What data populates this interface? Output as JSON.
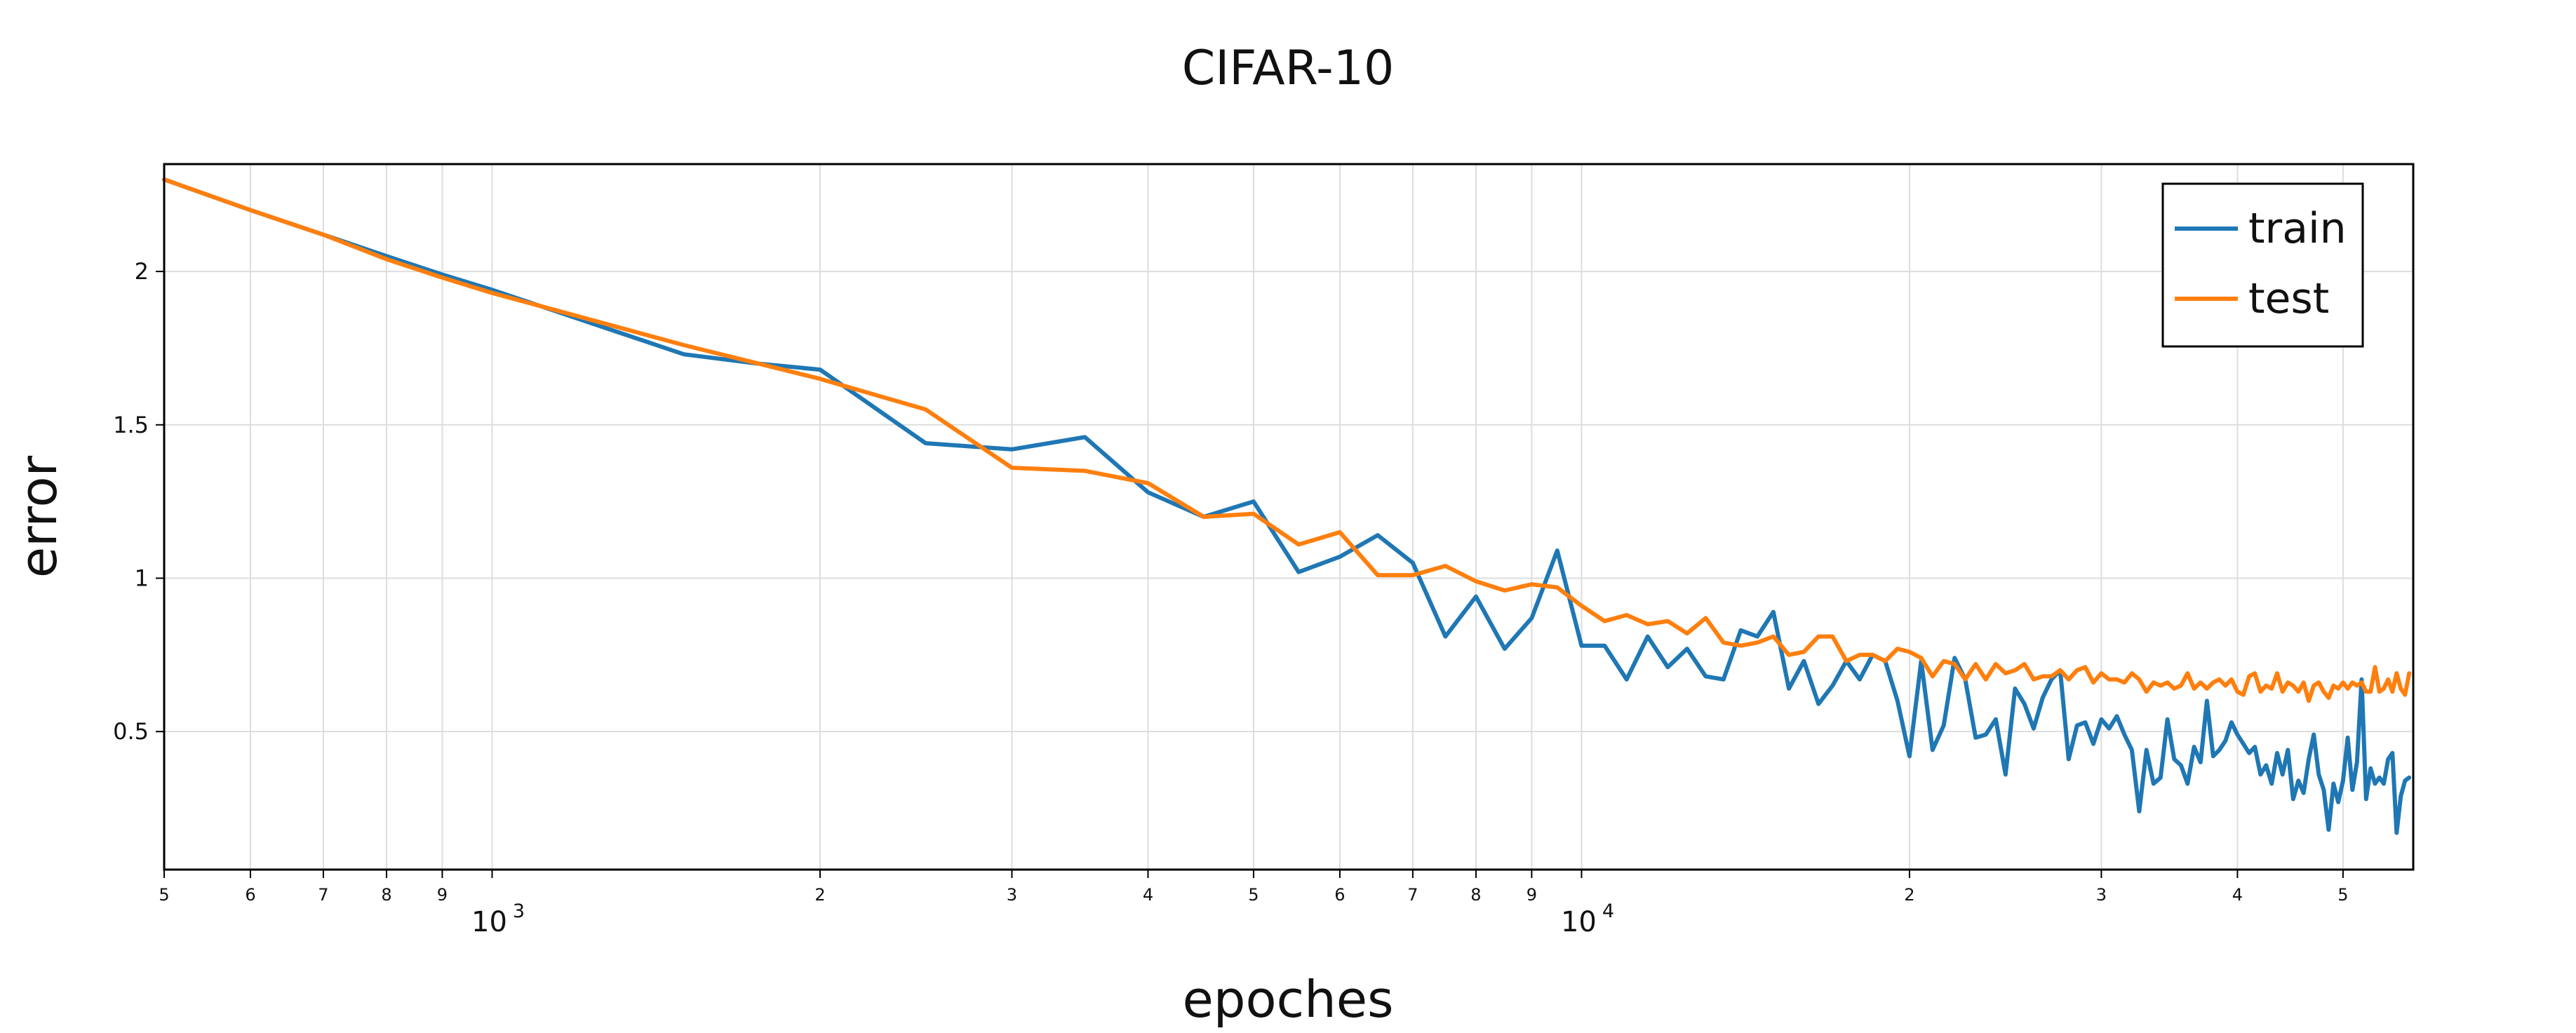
{
  "chart_data": {
    "type": "line",
    "title": "CIFAR-10",
    "xlabel": "epoches",
    "ylabel": "error",
    "xscale": "log",
    "xlim": [
      500,
      58000
    ],
    "ylim": [
      0.05,
      2.35
    ],
    "grid": true,
    "legend_position": "top-right",
    "y_ticks": [
      {
        "value": 0.5,
        "label": "0.5"
      },
      {
        "value": 1,
        "label": "1"
      },
      {
        "value": 1.5,
        "label": "1.5"
      },
      {
        "value": 2,
        "label": "2"
      }
    ],
    "x_minor_ticks": [
      {
        "value": 500,
        "label": "5"
      },
      {
        "value": 600,
        "label": "6"
      },
      {
        "value": 700,
        "label": "7"
      },
      {
        "value": 800,
        "label": "8"
      },
      {
        "value": 900,
        "label": "9"
      },
      {
        "value": 2000,
        "label": "2"
      },
      {
        "value": 3000,
        "label": "3"
      },
      {
        "value": 4000,
        "label": "4"
      },
      {
        "value": 5000,
        "label": "5"
      },
      {
        "value": 6000,
        "label": "6"
      },
      {
        "value": 7000,
        "label": "7"
      },
      {
        "value": 8000,
        "label": "8"
      },
      {
        "value": 9000,
        "label": "9"
      },
      {
        "value": 20000,
        "label": "2"
      },
      {
        "value": 30000,
        "label": "3"
      },
      {
        "value": 40000,
        "label": "4"
      },
      {
        "value": 50000,
        "label": "5"
      }
    ],
    "x_major_ticks": [
      {
        "value": 1000,
        "base": "10",
        "exp": "3"
      },
      {
        "value": 10000,
        "base": "10",
        "exp": "4"
      }
    ],
    "series": [
      {
        "name": "train",
        "color": "#1f77b4",
        "points": [
          [
            500,
            2.3
          ],
          [
            600,
            2.2
          ],
          [
            700,
            2.12
          ],
          [
            800,
            2.05
          ],
          [
            900,
            1.99
          ],
          [
            1000,
            1.94
          ],
          [
            1500,
            1.73
          ],
          [
            1750,
            1.7
          ],
          [
            2000,
            1.68
          ],
          [
            2500,
            1.44
          ],
          [
            3000,
            1.42
          ],
          [
            3500,
            1.46
          ],
          [
            4000,
            1.28
          ],
          [
            4500,
            1.2
          ],
          [
            5000,
            1.25
          ],
          [
            5500,
            1.02
          ],
          [
            6000,
            1.07
          ],
          [
            6500,
            1.14
          ],
          [
            7000,
            1.05
          ],
          [
            7500,
            0.81
          ],
          [
            8000,
            0.94
          ],
          [
            8500,
            0.77
          ],
          [
            9000,
            0.87
          ],
          [
            9500,
            1.09
          ],
          [
            10000,
            0.78
          ],
          [
            10500,
            0.78
          ],
          [
            11000,
            0.67
          ],
          [
            11500,
            0.81
          ],
          [
            12000,
            0.71
          ],
          [
            12500,
            0.77
          ],
          [
            13000,
            0.68
          ],
          [
            13500,
            0.67
          ],
          [
            14000,
            0.83
          ],
          [
            14500,
            0.81
          ],
          [
            15000,
            0.89
          ],
          [
            15500,
            0.64
          ],
          [
            16000,
            0.73
          ],
          [
            16500,
            0.59
          ],
          [
            17000,
            0.65
          ],
          [
            17500,
            0.73
          ],
          [
            18000,
            0.67
          ],
          [
            18500,
            0.75
          ],
          [
            19000,
            0.73
          ],
          [
            19500,
            0.6
          ],
          [
            20000,
            0.42
          ],
          [
            20500,
            0.73
          ],
          [
            21000,
            0.44
          ],
          [
            21500,
            0.52
          ],
          [
            22000,
            0.74
          ],
          [
            22500,
            0.67
          ],
          [
            23000,
            0.48
          ],
          [
            23500,
            0.49
          ],
          [
            24000,
            0.54
          ],
          [
            24500,
            0.36
          ],
          [
            25000,
            0.64
          ],
          [
            25500,
            0.59
          ],
          [
            26000,
            0.51
          ],
          [
            26500,
            0.61
          ],
          [
            27000,
            0.67
          ],
          [
            27500,
            0.7
          ],
          [
            28000,
            0.41
          ],
          [
            28500,
            0.52
          ],
          [
            29000,
            0.53
          ],
          [
            29500,
            0.46
          ],
          [
            30000,
            0.54
          ],
          [
            30500,
            0.51
          ],
          [
            31000,
            0.55
          ],
          [
            31500,
            0.49
          ],
          [
            32000,
            0.44
          ],
          [
            32500,
            0.24
          ],
          [
            33000,
            0.44
          ],
          [
            33500,
            0.33
          ],
          [
            34000,
            0.35
          ],
          [
            34500,
            0.54
          ],
          [
            35000,
            0.41
          ],
          [
            35500,
            0.39
          ],
          [
            36000,
            0.33
          ],
          [
            36500,
            0.45
          ],
          [
            37000,
            0.4
          ],
          [
            37500,
            0.6
          ],
          [
            38000,
            0.42
          ],
          [
            38500,
            0.44
          ],
          [
            39000,
            0.47
          ],
          [
            39500,
            0.53
          ],
          [
            40000,
            0.49
          ],
          [
            40500,
            0.46
          ],
          [
            41000,
            0.43
          ],
          [
            41500,
            0.45
          ],
          [
            42000,
            0.36
          ],
          [
            42500,
            0.39
          ],
          [
            43000,
            0.33
          ],
          [
            43500,
            0.43
          ],
          [
            44000,
            0.36
          ],
          [
            44500,
            0.44
          ],
          [
            45000,
            0.28
          ],
          [
            45500,
            0.34
          ],
          [
            46000,
            0.3
          ],
          [
            46500,
            0.41
          ],
          [
            47000,
            0.49
          ],
          [
            47500,
            0.36
          ],
          [
            48000,
            0.31
          ],
          [
            48500,
            0.18
          ],
          [
            49000,
            0.33
          ],
          [
            49500,
            0.27
          ],
          [
            50000,
            0.34
          ],
          [
            50500,
            0.48
          ],
          [
            51000,
            0.31
          ],
          [
            51500,
            0.4
          ],
          [
            52000,
            0.67
          ],
          [
            52500,
            0.28
          ],
          [
            53000,
            0.38
          ],
          [
            53500,
            0.33
          ],
          [
            54000,
            0.35
          ],
          [
            54500,
            0.33
          ],
          [
            55000,
            0.41
          ],
          [
            55500,
            0.43
          ],
          [
            56000,
            0.17
          ],
          [
            56500,
            0.29
          ],
          [
            57000,
            0.34
          ],
          [
            57500,
            0.35
          ]
        ]
      },
      {
        "name": "test",
        "color": "#ff7f0e",
        "points": [
          [
            500,
            2.3
          ],
          [
            600,
            2.2
          ],
          [
            700,
            2.12
          ],
          [
            800,
            2.04
          ],
          [
            900,
            1.98
          ],
          [
            1000,
            1.93
          ],
          [
            1500,
            1.76
          ],
          [
            2000,
            1.65
          ],
          [
            2500,
            1.55
          ],
          [
            3000,
            1.36
          ],
          [
            3500,
            1.35
          ],
          [
            4000,
            1.31
          ],
          [
            4500,
            1.2
          ],
          [
            5000,
            1.21
          ],
          [
            5500,
            1.11
          ],
          [
            6000,
            1.15
          ],
          [
            6500,
            1.01
          ],
          [
            7000,
            1.01
          ],
          [
            7500,
            1.04
          ],
          [
            8000,
            0.99
          ],
          [
            8500,
            0.96
          ],
          [
            9000,
            0.98
          ],
          [
            9500,
            0.97
          ],
          [
            10000,
            0.91
          ],
          [
            10500,
            0.86
          ],
          [
            11000,
            0.88
          ],
          [
            11500,
            0.85
          ],
          [
            12000,
            0.86
          ],
          [
            12500,
            0.82
          ],
          [
            13000,
            0.87
          ],
          [
            13500,
            0.79
          ],
          [
            14000,
            0.78
          ],
          [
            14500,
            0.79
          ],
          [
            15000,
            0.81
          ],
          [
            15500,
            0.75
          ],
          [
            16000,
            0.76
          ],
          [
            16500,
            0.81
          ],
          [
            17000,
            0.81
          ],
          [
            17500,
            0.73
          ],
          [
            18000,
            0.75
          ],
          [
            18500,
            0.75
          ],
          [
            19000,
            0.73
          ],
          [
            19500,
            0.77
          ],
          [
            20000,
            0.76
          ],
          [
            20500,
            0.74
          ],
          [
            21000,
            0.68
          ],
          [
            21500,
            0.73
          ],
          [
            22000,
            0.72
          ],
          [
            22500,
            0.67
          ],
          [
            23000,
            0.72
          ],
          [
            23500,
            0.67
          ],
          [
            24000,
            0.72
          ],
          [
            24500,
            0.69
          ],
          [
            25000,
            0.7
          ],
          [
            25500,
            0.72
          ],
          [
            26000,
            0.67
          ],
          [
            26500,
            0.68
          ],
          [
            27000,
            0.68
          ],
          [
            27500,
            0.7
          ],
          [
            28000,
            0.67
          ],
          [
            28500,
            0.7
          ],
          [
            29000,
            0.71
          ],
          [
            29500,
            0.66
          ],
          [
            30000,
            0.69
          ],
          [
            30500,
            0.67
          ],
          [
            31000,
            0.67
          ],
          [
            31500,
            0.66
          ],
          [
            32000,
            0.69
          ],
          [
            32500,
            0.67
          ],
          [
            33000,
            0.63
          ],
          [
            33500,
            0.66
          ],
          [
            34000,
            0.65
          ],
          [
            34500,
            0.66
          ],
          [
            35000,
            0.64
          ],
          [
            35500,
            0.65
          ],
          [
            36000,
            0.69
          ],
          [
            36500,
            0.64
          ],
          [
            37000,
            0.66
          ],
          [
            37500,
            0.64
          ],
          [
            38000,
            0.66
          ],
          [
            38500,
            0.67
          ],
          [
            39000,
            0.65
          ],
          [
            39500,
            0.67
          ],
          [
            40000,
            0.63
          ],
          [
            40500,
            0.62
          ],
          [
            41000,
            0.68
          ],
          [
            41500,
            0.69
          ],
          [
            42000,
            0.63
          ],
          [
            42500,
            0.65
          ],
          [
            43000,
            0.64
          ],
          [
            43500,
            0.69
          ],
          [
            44000,
            0.63
          ],
          [
            44500,
            0.66
          ],
          [
            45000,
            0.65
          ],
          [
            45500,
            0.63
          ],
          [
            46000,
            0.66
          ],
          [
            46500,
            0.6
          ],
          [
            47000,
            0.65
          ],
          [
            47500,
            0.66
          ],
          [
            48000,
            0.63
          ],
          [
            48500,
            0.61
          ],
          [
            49000,
            0.65
          ],
          [
            49500,
            0.64
          ],
          [
            50000,
            0.66
          ],
          [
            50500,
            0.64
          ],
          [
            51000,
            0.66
          ],
          [
            51500,
            0.65
          ],
          [
            52000,
            0.66
          ],
          [
            52500,
            0.63
          ],
          [
            53000,
            0.63
          ],
          [
            53500,
            0.71
          ],
          [
            54000,
            0.63
          ],
          [
            54500,
            0.64
          ],
          [
            55000,
            0.67
          ],
          [
            55500,
            0.63
          ],
          [
            56000,
            0.69
          ],
          [
            56500,
            0.64
          ],
          [
            57000,
            0.62
          ],
          [
            57500,
            0.69
          ]
        ]
      }
    ]
  }
}
